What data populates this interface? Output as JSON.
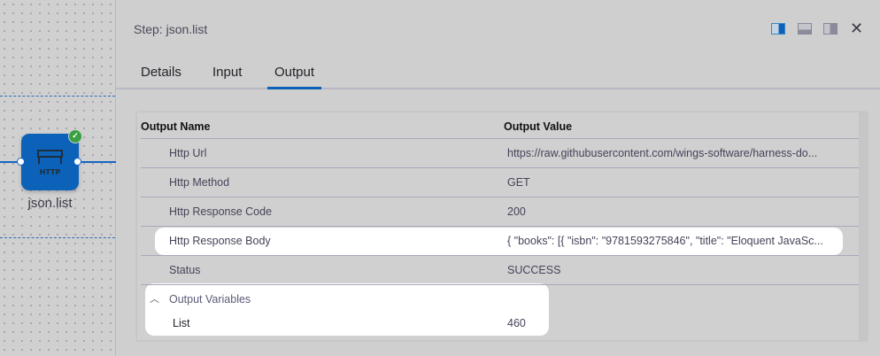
{
  "canvas": {
    "node_label": "json.list",
    "node_icon": "http-icon",
    "node_icon_text": "HTTP",
    "status": "success",
    "accent": "#0b62b8"
  },
  "panel": {
    "title": "Step: json.list",
    "tabs": [
      "Details",
      "Input",
      "Output"
    ],
    "active_tab": "Output",
    "close": "✕"
  },
  "table": {
    "headers": {
      "name": "Output Name",
      "value": "Output Value"
    },
    "rows": [
      {
        "name": "Http Url",
        "value": "https://raw.githubusercontent.com/wings-software/harness-do..."
      },
      {
        "name": "Http Method",
        "value": "GET"
      },
      {
        "name": "Http Response Code",
        "value": "200"
      },
      {
        "name": "Http Response Body",
        "value": "{ \"books\": [{ \"isbn\": \"9781593275846\", \"title\": \"Eloquent JavaSc..."
      },
      {
        "name": "Status",
        "value": "SUCCESS"
      }
    ],
    "output_variables": {
      "label": "Output Variables",
      "expanded": true,
      "items": [
        {
          "name": "List",
          "value": "460"
        }
      ]
    }
  }
}
